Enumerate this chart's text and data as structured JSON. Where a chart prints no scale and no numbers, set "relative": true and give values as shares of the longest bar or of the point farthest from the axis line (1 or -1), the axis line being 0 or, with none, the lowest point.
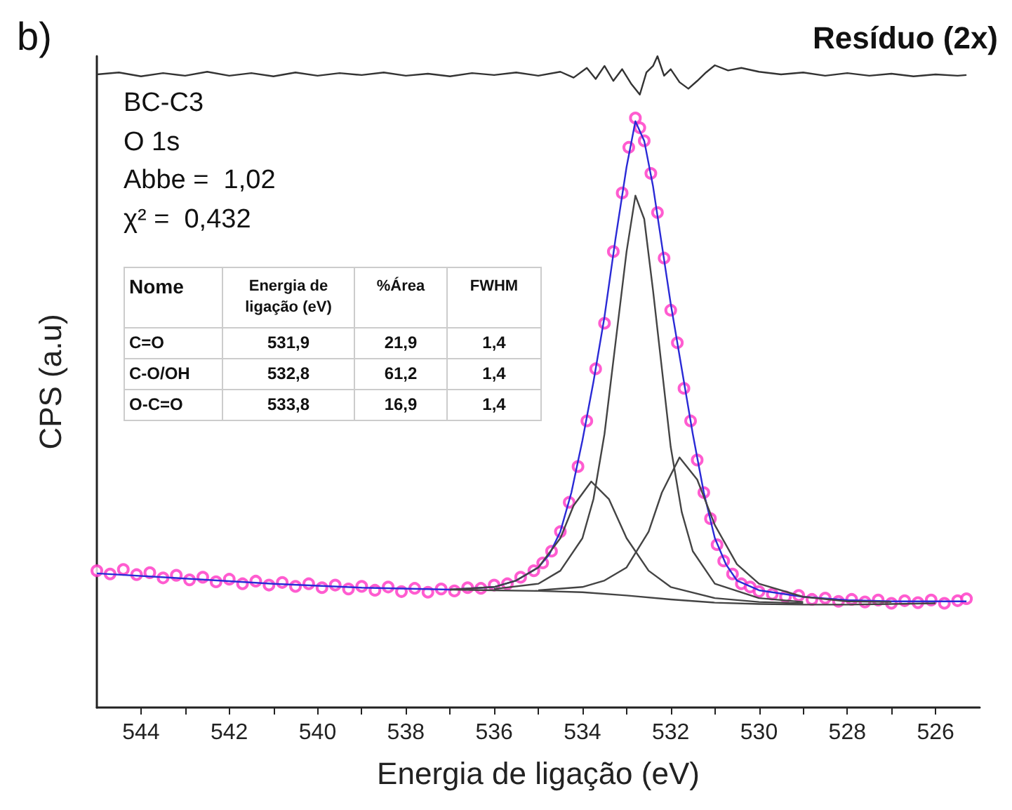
{
  "chart_data": {
    "type": "line",
    "relative": true,
    "xlabel": "Energia de ligação (eV)",
    "ylabel": "CPS (a.u)",
    "xlim": [
      545,
      525
    ],
    "xticks": [
      544,
      {
        "value": 543,
        "label": null
      },
      542,
      {
        "value": 541,
        "label": null
      },
      540,
      {
        "value": 539,
        "label": null
      },
      538,
      {
        "value": 537,
        "label": null
      },
      536,
      {
        "value": 535,
        "label": null
      },
      534,
      {
        "value": 533,
        "label": null
      },
      532,
      {
        "value": 531,
        "label": null
      },
      530,
      {
        "value": 529,
        "label": null
      },
      528,
      {
        "value": 527,
        "label": null
      },
      526
    ],
    "grid": false,
    "legend": false,
    "annotations": [
      "b)",
      "Resíduo (2x)",
      "BC-C3",
      "O 1s",
      "Abbe =  1,02",
      "χ² =  0,432",
      "Nome",
      "Energia de ligação (eV)",
      "%Área",
      "FWHM",
      "C=O",
      "531,9",
      "21,9",
      "1,4",
      "C-O/OH",
      "532,8",
      "61,2",
      "1,4",
      "O-C=O",
      "533,8",
      "16,9",
      "1,4"
    ],
    "series": [
      {
        "type": "scatter",
        "marker": "circle",
        "color": "#ff33c4",
        "x": [
          545,
          544.7,
          544.4,
          544.1,
          543.8,
          543.5,
          543.2,
          542.9,
          542.6,
          542.3,
          542,
          541.7,
          541.4,
          541.1,
          540.8,
          540.5,
          540.2,
          539.9,
          539.6,
          539.3,
          539,
          538.7,
          538.4,
          538.1,
          537.8,
          537.5,
          537.2,
          536.9,
          536.6,
          536.3,
          536,
          535.7,
          535.4,
          535.1,
          534.9,
          534.7,
          534.5,
          534.3,
          534.1,
          533.9,
          533.7,
          533.5,
          533.3,
          533.1,
          532.95,
          532.8,
          532.7,
          532.6,
          532.45,
          532.3,
          532.15,
          532,
          531.85,
          531.7,
          531.55,
          531.4,
          531.25,
          531.1,
          530.95,
          530.8,
          530.6,
          530.4,
          530.2,
          530,
          529.7,
          529.4,
          529.1,
          528.8,
          528.5,
          528.2,
          527.9,
          527.6,
          527.3,
          527,
          526.7,
          526.4,
          526.1,
          525.8,
          525.5,
          525.3
        ],
        "values": [
          0.21,
          0.205,
          0.212,
          0.204,
          0.207,
          0.199,
          0.203,
          0.196,
          0.2,
          0.193,
          0.197,
          0.19,
          0.194,
          0.188,
          0.192,
          0.186,
          0.19,
          0.184,
          0.188,
          0.182,
          0.186,
          0.18,
          0.185,
          0.178,
          0.183,
          0.177,
          0.182,
          0.179,
          0.184,
          0.183,
          0.188,
          0.19,
          0.2,
          0.21,
          0.222,
          0.24,
          0.27,
          0.315,
          0.37,
          0.44,
          0.52,
          0.59,
          0.7,
          0.79,
          0.86,
          0.905,
          0.89,
          0.87,
          0.82,
          0.76,
          0.69,
          0.61,
          0.56,
          0.49,
          0.44,
          0.38,
          0.33,
          0.29,
          0.25,
          0.225,
          0.205,
          0.19,
          0.185,
          0.178,
          0.174,
          0.17,
          0.172,
          0.166,
          0.168,
          0.163,
          0.166,
          0.162,
          0.165,
          0.16,
          0.164,
          0.161,
          0.165,
          0.16,
          0.164,
          0.167
        ]
      },
      {
        "color": "#2a2ad6",
        "x": [
          545,
          543,
          541,
          539,
          537,
          536,
          535.5,
          535,
          534.75,
          534.5,
          534.25,
          534,
          533.75,
          533.5,
          533.25,
          533,
          532.8,
          532.6,
          532.4,
          532.2,
          532,
          531.75,
          531.5,
          531.25,
          531,
          530.75,
          530.5,
          530,
          529,
          528,
          527,
          526,
          525.3
        ],
        "values": [
          0.206,
          0.198,
          0.19,
          0.184,
          0.181,
          0.185,
          0.195,
          0.215,
          0.235,
          0.27,
          0.33,
          0.41,
          0.5,
          0.6,
          0.72,
          0.83,
          0.9,
          0.87,
          0.8,
          0.71,
          0.62,
          0.52,
          0.42,
          0.33,
          0.26,
          0.22,
          0.195,
          0.18,
          0.17,
          0.165,
          0.163,
          0.163,
          0.163
        ]
      },
      {
        "color": "#444444",
        "x": [
          537,
          536,
          535,
          534,
          533,
          532,
          531,
          530,
          529,
          528,
          527,
          526
        ],
        "values": [
          0.181,
          0.18,
          0.179,
          0.177,
          0.172,
          0.166,
          0.161,
          0.159,
          0.158,
          0.158,
          0.159,
          0.16
        ]
      },
      {
        "color": "#444444",
        "x": [
          537,
          536,
          535.5,
          535,
          534.5,
          534.2,
          533.8,
          533.4,
          533,
          532.5,
          532,
          531,
          530,
          529
        ],
        "values": [
          0.181,
          0.185,
          0.195,
          0.215,
          0.26,
          0.31,
          0.347,
          0.32,
          0.26,
          0.21,
          0.185,
          0.168,
          0.162,
          0.16
        ]
      },
      {
        "color": "#444444",
        "x": [
          536,
          535,
          534.5,
          534,
          533.75,
          533.5,
          533.25,
          533,
          532.8,
          532.6,
          532.4,
          532.2,
          532,
          531.75,
          531.5,
          531,
          530,
          529
        ],
        "values": [
          0.182,
          0.19,
          0.21,
          0.26,
          0.32,
          0.42,
          0.56,
          0.7,
          0.786,
          0.75,
          0.64,
          0.52,
          0.4,
          0.3,
          0.24,
          0.19,
          0.168,
          0.162
        ]
      },
      {
        "color": "#444444",
        "x": [
          535,
          534,
          533.5,
          533,
          532.5,
          532.2,
          531.8,
          531.4,
          531,
          530.5,
          530,
          529,
          528,
          527
        ],
        "values": [
          0.18,
          0.185,
          0.195,
          0.215,
          0.27,
          0.33,
          0.384,
          0.35,
          0.28,
          0.22,
          0.19,
          0.17,
          0.163,
          0.162
        ]
      },
      {
        "color": "#333333",
        "x": [
          545,
          544.5,
          544,
          543.5,
          543,
          542.5,
          542,
          541.5,
          541,
          540.5,
          540,
          539.5,
          539,
          538.5,
          538,
          537.5,
          537,
          536.5,
          536,
          535.5,
          535,
          534.5,
          534.2,
          533.9,
          533.7,
          533.5,
          533.3,
          533.1,
          532.9,
          532.7,
          532.55,
          532.4,
          532.3,
          532.15,
          532,
          531.8,
          531.6,
          531.4,
          531.2,
          531,
          530.7,
          530.4,
          530,
          529.5,
          529,
          528.5,
          528,
          527.5,
          527,
          526.5,
          526,
          525.5,
          525.3
        ],
        "values": [
          0.972,
          0.975,
          0.969,
          0.974,
          0.97,
          0.976,
          0.97,
          0.974,
          0.969,
          0.975,
          0.97,
          0.974,
          0.971,
          0.975,
          0.97,
          0.973,
          0.969,
          0.974,
          0.971,
          0.975,
          0.97,
          0.976,
          0.967,
          0.982,
          0.965,
          0.985,
          0.962,
          0.98,
          0.958,
          0.941,
          0.975,
          0.985,
          1.0,
          0.97,
          0.98,
          0.96,
          0.95,
          0.962,
          0.975,
          0.986,
          0.978,
          0.982,
          0.976,
          0.972,
          0.975,
          0.97,
          0.974,
          0.97,
          0.973,
          0.969,
          0.972,
          0.97,
          0.971
        ]
      }
    ]
  }
}
